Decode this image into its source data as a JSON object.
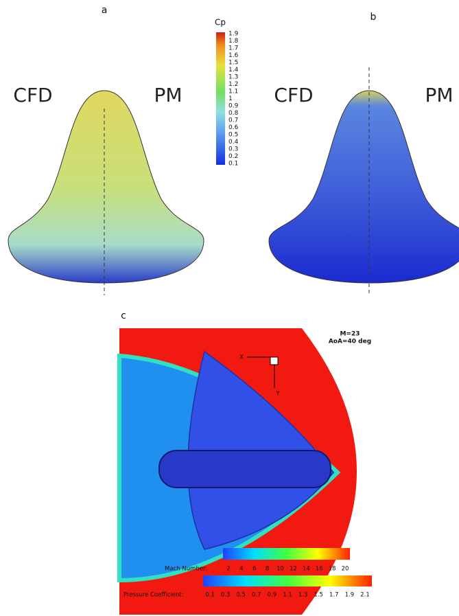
{
  "panel_a": {
    "label": "a",
    "left_label": "CFD",
    "right_label": "PM",
    "colorbar": {
      "title": "Cp",
      "ticks": [
        1.9,
        1.8,
        1.7,
        1.6,
        1.5,
        1.4,
        1.3,
        1.2,
        1.1,
        1,
        0.9,
        0.8,
        0.7,
        0.6,
        0.5,
        0.4,
        0.3,
        0.2,
        0.1
      ]
    }
  },
  "panel_b": {
    "label": "b",
    "left_label": "CFD",
    "right_label": "PM"
  },
  "panel_c": {
    "label": "c",
    "conditions": [
      "M=23",
      "AoA=40 deg"
    ],
    "axis_x": "X",
    "axis_y": "Y",
    "mach_legend": {
      "title": "Mach Number:",
      "ticks": [
        2,
        4,
        6,
        8,
        10,
        12,
        14,
        16,
        18,
        20
      ]
    },
    "pressure_legend": {
      "title": "Pressure Coefficient:",
      "ticks": [
        0.1,
        0.3,
        0.5,
        0.7,
        0.9,
        1.1,
        1.3,
        1.5,
        1.7,
        1.9,
        2.1
      ]
    }
  }
}
